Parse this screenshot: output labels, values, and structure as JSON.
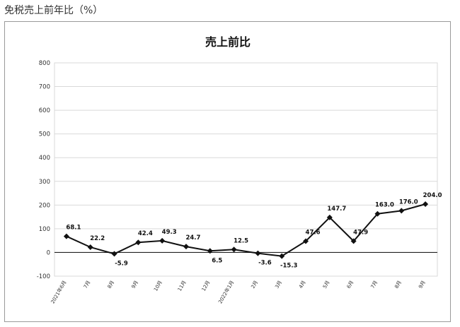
{
  "page": {
    "heading": "免税売上前年比（%）"
  },
  "chart_data": {
    "type": "line",
    "title": "売上前比",
    "xlabel": "",
    "ylabel": "",
    "ylim": [
      -100,
      800
    ],
    "yticks": [
      800,
      700,
      600,
      500,
      400,
      300,
      200,
      100,
      0,
      -100
    ],
    "grid": true,
    "legend": "none",
    "categories": [
      "2021年6月",
      "7月",
      "8月",
      "9月",
      "10月",
      "11月",
      "12月",
      "2022年1月",
      "2月",
      "3月",
      "4月",
      "5月",
      "6月",
      "7月",
      "8月",
      "9月"
    ],
    "series": [
      {
        "values": [
          68.1,
          22.2,
          -5.9,
          42.4,
          49.3,
          24.7,
          6.5,
          12.5,
          -3.6,
          -15.3,
          47.6,
          147.7,
          47.9,
          163.0,
          176.0,
          204.0
        ],
        "labels": [
          "68.1",
          "22.2",
          "-5.9",
          "42.4",
          "49.3",
          "24.7",
          "6.5",
          "12.5",
          "-3.6",
          "-15.3",
          "47.6",
          "147.7",
          "47.9",
          "163.0",
          "176.0",
          "204.0"
        ],
        "color": "#111111"
      }
    ]
  }
}
